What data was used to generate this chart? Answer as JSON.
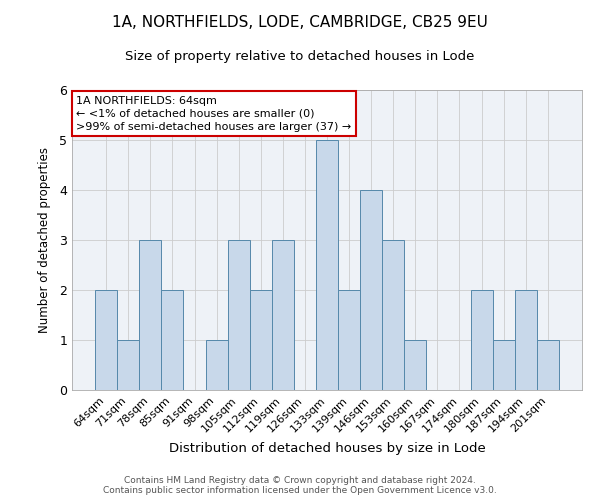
{
  "title": "1A, NORTHFIELDS, LODE, CAMBRIDGE, CB25 9EU",
  "subtitle": "Size of property relative to detached houses in Lode",
  "xlabel": "Distribution of detached houses by size in Lode",
  "ylabel": "Number of detached properties",
  "categories": [
    "64sqm",
    "71sqm",
    "78sqm",
    "85sqm",
    "91sqm",
    "98sqm",
    "105sqm",
    "112sqm",
    "119sqm",
    "126sqm",
    "133sqm",
    "139sqm",
    "146sqm",
    "153sqm",
    "160sqm",
    "167sqm",
    "174sqm",
    "180sqm",
    "187sqm",
    "194sqm",
    "201sqm"
  ],
  "values": [
    2,
    1,
    3,
    2,
    0,
    1,
    3,
    2,
    3,
    0,
    5,
    2,
    4,
    3,
    1,
    0,
    0,
    2,
    1,
    2,
    1
  ],
  "bar_color": "#c8d8ea",
  "bar_edge_color": "#5588aa",
  "annotation_box_text": "1A NORTHFIELDS: 64sqm\n← <1% of detached houses are smaller (0)\n>99% of semi-detached houses are larger (37) →",
  "annotation_box_color": "white",
  "annotation_box_edge_color": "#cc0000",
  "ylim": [
    0,
    6
  ],
  "yticks": [
    0,
    1,
    2,
    3,
    4,
    5,
    6
  ],
  "grid_color": "#cccccc",
  "background_color": "#eef2f7",
  "footer_line1": "Contains HM Land Registry data © Crown copyright and database right 2024.",
  "footer_line2": "Contains public sector information licensed under the Open Government Licence v3.0.",
  "title_fontsize": 11,
  "subtitle_fontsize": 9.5,
  "xlabel_fontsize": 9.5,
  "ylabel_fontsize": 8.5,
  "tick_fontsize": 8,
  "annotation_fontsize": 8,
  "footer_fontsize": 6.5
}
